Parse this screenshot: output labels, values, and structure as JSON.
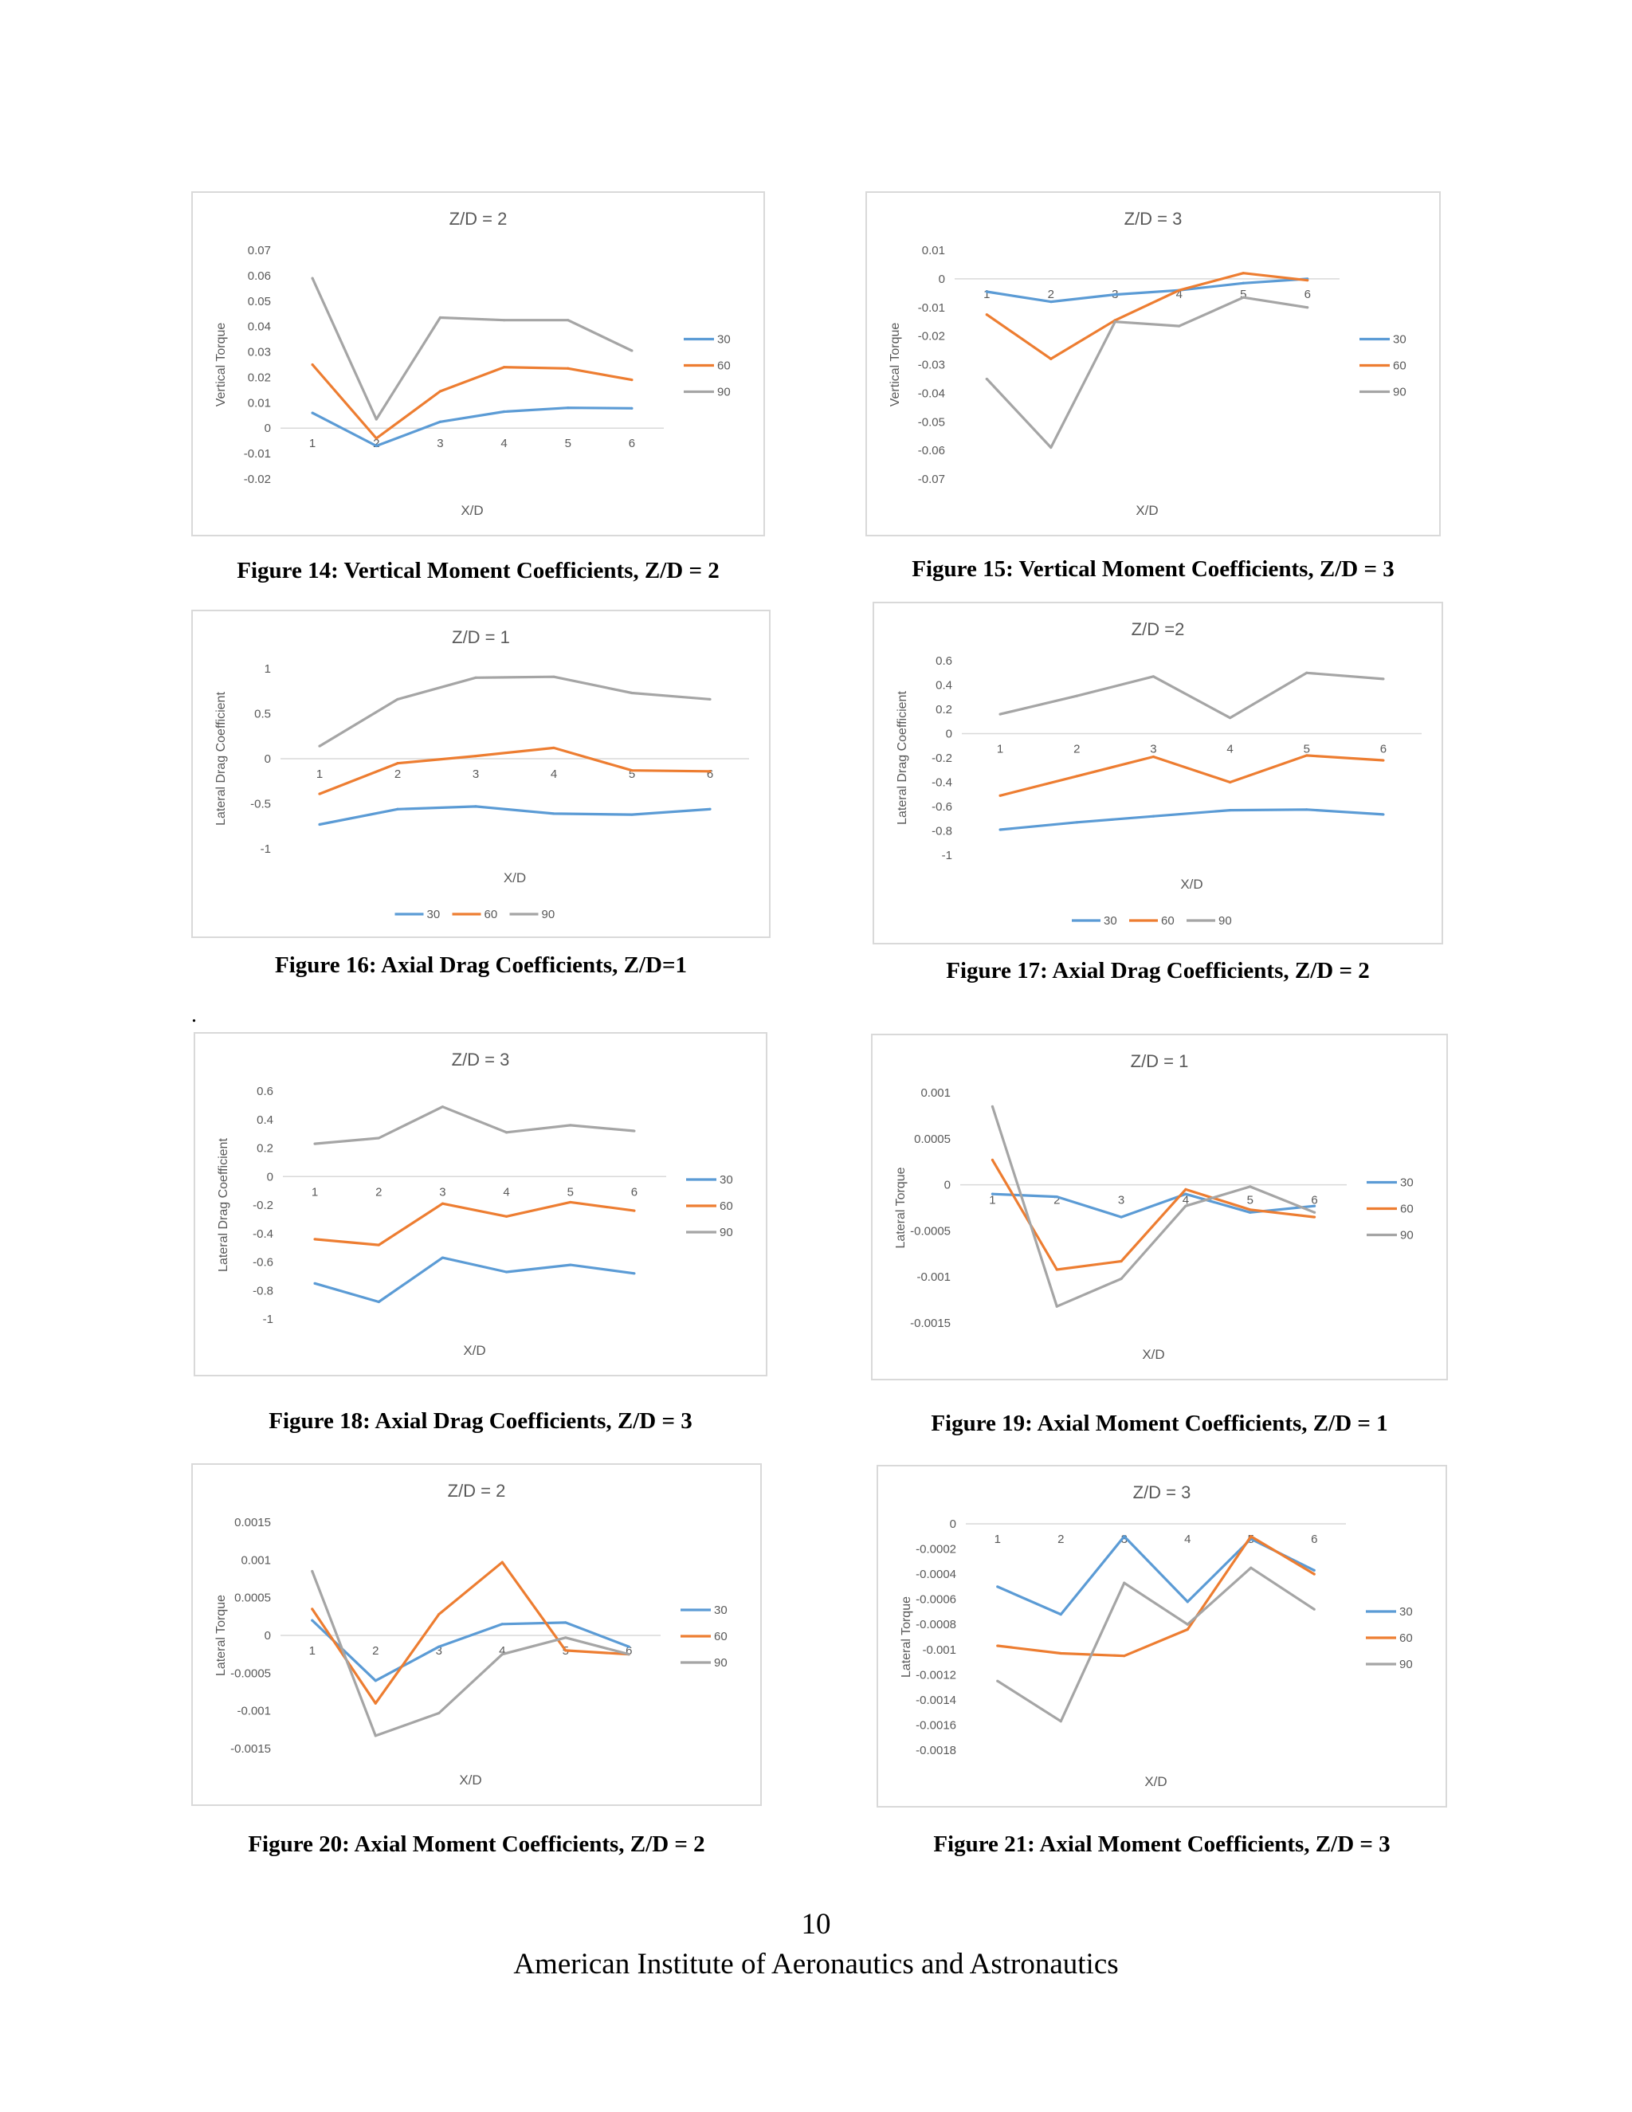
{
  "colors": {
    "s30": "#5b9bd5",
    "s60": "#ed7d31",
    "s90": "#a5a5a5",
    "grid": "#d9d9d9",
    "tick": "#595959"
  },
  "figures": [
    {
      "caption": "Figure 14: Vertical Moment Coefficients, Z/D = 2",
      "chart_data": {
        "type": "line",
        "title": "Z/D = 2",
        "xlabel": "X/D",
        "ylabel": "Vertical Torque",
        "x": [
          1,
          2,
          3,
          4,
          5,
          6
        ],
        "y_ticks": [
          -0.02,
          -0.01,
          0,
          0.01,
          0.02,
          0.03,
          0.04,
          0.05,
          0.06,
          0.07
        ],
        "y_tick_labels": [
          "-0.02",
          "-0.01",
          "0",
          "0.01",
          "0.02",
          "0.03",
          "0.04",
          "0.05",
          "0.06",
          "0.07"
        ],
        "ylim": [
          -0.02,
          0.07
        ],
        "legend": "right",
        "series": [
          {
            "name": "30",
            "values": [
              0.006,
              -0.007,
              0.0025,
              0.0065,
              0.008,
              0.0078
            ]
          },
          {
            "name": "60",
            "values": [
              0.025,
              -0.004,
              0.0145,
              0.024,
              0.0235,
              0.019
            ]
          },
          {
            "name": "90",
            "values": [
              0.059,
              0.0035,
              0.0435,
              0.0425,
              0.0425,
              0.0305
            ]
          }
        ]
      }
    },
    {
      "caption": "Figure 15: Vertical Moment Coefficients, Z/D = 3",
      "chart_data": {
        "type": "line",
        "title": "Z/D = 3",
        "xlabel": "X/D",
        "ylabel": "Vertical Torque",
        "x": [
          1,
          2,
          3,
          4,
          5,
          6
        ],
        "y_ticks": [
          -0.07,
          -0.06,
          -0.05,
          -0.04,
          -0.03,
          -0.02,
          -0.01,
          0,
          0.01
        ],
        "y_tick_labels": [
          "-0.07",
          "-0.06",
          "-0.05",
          "-0.04",
          "-0.03",
          "-0.02",
          "-0.01",
          "0",
          "0.01"
        ],
        "ylim": [
          -0.07,
          0.01
        ],
        "legend": "right",
        "series": [
          {
            "name": "30",
            "values": [
              -0.0045,
              -0.008,
              -0.0055,
              -0.004,
              -0.0015,
              0.0
            ]
          },
          {
            "name": "60",
            "values": [
              -0.0125,
              -0.028,
              -0.0145,
              -0.004,
              0.002,
              -0.0005
            ]
          },
          {
            "name": "90",
            "values": [
              -0.035,
              -0.059,
              -0.015,
              -0.0165,
              -0.0065,
              -0.01
            ]
          }
        ]
      }
    },
    {
      "caption": "Figure 16: Axial Drag Coefficients, Z/D=1",
      "chart_data": {
        "type": "line",
        "title": "Z/D = 1",
        "xlabel": "X/D",
        "ylabel": "Lateral Drag Coefficient",
        "x": [
          1,
          2,
          3,
          4,
          5,
          6
        ],
        "y_ticks": [
          -1,
          -0.5,
          0,
          0.5,
          1
        ],
        "y_tick_labels": [
          "-1",
          "-0.5",
          "0",
          "0.5",
          "1"
        ],
        "ylim": [
          -1,
          1
        ],
        "legend": "bottom",
        "series": [
          {
            "name": "30",
            "values": [
              -0.73,
              -0.56,
              -0.53,
              -0.61,
              -0.62,
              -0.56
            ]
          },
          {
            "name": "60",
            "values": [
              -0.39,
              -0.05,
              0.03,
              0.12,
              -0.13,
              -0.14
            ]
          },
          {
            "name": "90",
            "values": [
              0.14,
              0.66,
              0.9,
              0.91,
              0.73,
              0.66
            ]
          }
        ]
      }
    },
    {
      "caption": "Figure 17: Axial Drag Coefficients, Z/D = 2",
      "chart_data": {
        "type": "line",
        "title": "Z/D =2",
        "xlabel": "X/D",
        "ylabel": "Lateral Drag Coefficient",
        "x": [
          1,
          2,
          3,
          4,
          5,
          6
        ],
        "y_ticks": [
          -1,
          -0.8,
          -0.6,
          -0.4,
          -0.2,
          0,
          0.2,
          0.4,
          0.6
        ],
        "y_tick_labels": [
          "-1",
          "-0.8",
          "-0.6",
          "-0.4",
          "-0.2",
          "0",
          "0.2",
          "0.4",
          "0.6"
        ],
        "ylim": [
          -1,
          0.6
        ],
        "legend": "bottom",
        "series": [
          {
            "name": "30",
            "values": [
              -0.79,
              -0.73,
              -0.68,
              -0.63,
              -0.625,
              -0.665
            ]
          },
          {
            "name": "60",
            "values": [
              -0.51,
              -0.35,
              -0.19,
              -0.4,
              -0.18,
              -0.22
            ]
          },
          {
            "name": "90",
            "values": [
              0.16,
              0.31,
              0.47,
              0.13,
              0.5,
              0.45
            ]
          }
        ]
      }
    },
    {
      "caption": "Figure 18: Axial Drag Coefficients, Z/D = 3",
      "chart_data": {
        "type": "line",
        "title": "Z/D = 3",
        "xlabel": "X/D",
        "ylabel": "Lateral Drag Coefficient",
        "x": [
          1,
          2,
          3,
          4,
          5,
          6
        ],
        "y_ticks": [
          -1,
          -0.8,
          -0.6,
          -0.4,
          -0.2,
          0,
          0.2,
          0.4,
          0.6
        ],
        "y_tick_labels": [
          "-1",
          "-0.8",
          "-0.6",
          "-0.4",
          "-0.2",
          "0",
          "0.2",
          "0.4",
          "0.6"
        ],
        "ylim": [
          -1,
          0.6
        ],
        "legend": "right",
        "series": [
          {
            "name": "30",
            "values": [
              -0.75,
              -0.88,
              -0.57,
              -0.67,
              -0.62,
              -0.68
            ]
          },
          {
            "name": "60",
            "values": [
              -0.44,
              -0.48,
              -0.19,
              -0.28,
              -0.18,
              -0.24
            ]
          },
          {
            "name": "90",
            "values": [
              0.23,
              0.27,
              0.49,
              0.31,
              0.36,
              0.32
            ]
          }
        ]
      }
    },
    {
      "caption": "Figure 19:  Axial Moment Coefficients, Z/D = 1",
      "chart_data": {
        "type": "line",
        "title": "Z/D = 1",
        "xlabel": "X/D",
        "ylabel": "Lateral Torque",
        "x": [
          1,
          2,
          3,
          4,
          5,
          6
        ],
        "y_ticks": [
          -0.0015,
          -0.001,
          -0.0005,
          0,
          0.0005,
          0.001
        ],
        "y_tick_labels": [
          "-0.0015",
          "-0.001",
          "-0.0005",
          "0",
          "0.0005",
          "0.001"
        ],
        "ylim": [
          -0.0015,
          0.001
        ],
        "legend": "right",
        "series": [
          {
            "name": "30",
            "values": [
              -0.0001,
              -0.00013,
              -0.00035,
              -0.0001,
              -0.0003,
              -0.00023
            ]
          },
          {
            "name": "60",
            "values": [
              0.00027,
              -0.00092,
              -0.00083,
              -5e-05,
              -0.00027,
              -0.00035
            ]
          },
          {
            "name": "90",
            "values": [
              0.00085,
              -0.00132,
              -0.00102,
              -0.00023,
              -2e-05,
              -0.0003
            ]
          }
        ]
      }
    },
    {
      "caption": "Figure 20: Axial Moment Coefficients, Z/D = 2",
      "chart_data": {
        "type": "line",
        "title": "Z/D = 2",
        "xlabel": "X/D",
        "ylabel": "Lateral Torque",
        "x": [
          1,
          2,
          3,
          4,
          5,
          6
        ],
        "y_ticks": [
          -0.0015,
          -0.001,
          -0.0005,
          0,
          0.0005,
          0.001,
          0.0015
        ],
        "y_tick_labels": [
          "-0.0015",
          "-0.001",
          "-0.0005",
          "0",
          "0.0005",
          "0.001",
          "0.0015"
        ],
        "ylim": [
          -0.0015,
          0.0015
        ],
        "legend": "right",
        "series": [
          {
            "name": "30",
            "values": [
              0.0002,
              -0.0006,
              -0.00015,
              0.00015,
              0.00017,
              -0.00015
            ]
          },
          {
            "name": "60",
            "values": [
              0.00035,
              -0.0009,
              0.00028,
              0.00097,
              -0.0002,
              -0.00025
            ]
          },
          {
            "name": "90",
            "values": [
              0.00085,
              -0.00133,
              -0.00103,
              -0.00025,
              -3e-05,
              -0.00025
            ]
          }
        ]
      }
    },
    {
      "caption": "Figure 21: Axial Moment Coefficients, Z/D = 3",
      "chart_data": {
        "type": "line",
        "title": "Z/D = 3",
        "xlabel": "X/D",
        "ylabel": "Lateral Torque",
        "x": [
          1,
          2,
          3,
          4,
          5,
          6
        ],
        "y_ticks": [
          -0.0018,
          -0.0016,
          -0.0014,
          -0.0012,
          -0.001,
          -0.0008,
          -0.0006,
          -0.0004,
          -0.0002,
          0
        ],
        "y_tick_labels": [
          "-0.0018",
          "-0.0016",
          "-0.0014",
          "-0.0012",
          "-0.001",
          "-0.0008",
          "-0.0006",
          "-0.0004",
          "-0.0002",
          "0"
        ],
        "ylim": [
          -0.0018,
          0
        ],
        "legend": "right",
        "series": [
          {
            "name": "30",
            "values": [
              -0.0005,
              -0.00072,
              -0.0001,
              -0.00062,
              -0.00012,
              -0.00037
            ]
          },
          {
            "name": "60",
            "values": [
              -0.00097,
              -0.00103,
              -0.00105,
              -0.00084,
              -0.0001,
              -0.0004
            ]
          },
          {
            "name": "90",
            "values": [
              -0.00125,
              -0.00157,
              -0.00047,
              -0.0008,
              -0.00035,
              -0.00068
            ]
          }
        ]
      }
    }
  ],
  "stray_mark": ".",
  "footer": {
    "page_number": "10",
    "organization": "American Institute of Aeronautics and Astronautics"
  }
}
